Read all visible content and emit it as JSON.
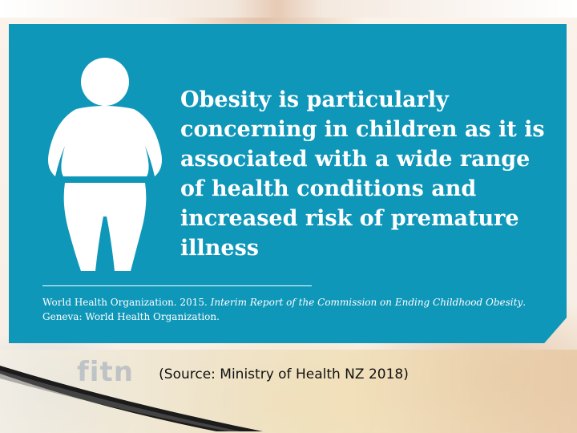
{
  "slide": {
    "headline": "Obesity is particularly concerning in children as it is associated with a wide range of health conditions and increased risk of premature illness",
    "citation": {
      "prefix": "World Health Organization. 2015. ",
      "title": "Interim Report of the Commission on Ending Childhood Obesity",
      "suffix": ".",
      "line2": "Geneva: World Health Organization."
    },
    "source": "(Source: Ministry of Health NZ 2018)",
    "icon": "person-silhouette-icon",
    "watermark": "fitn"
  },
  "colors": {
    "card": "#0f97b9",
    "text_on_card": "#ffffff",
    "source_text": "#111111"
  }
}
